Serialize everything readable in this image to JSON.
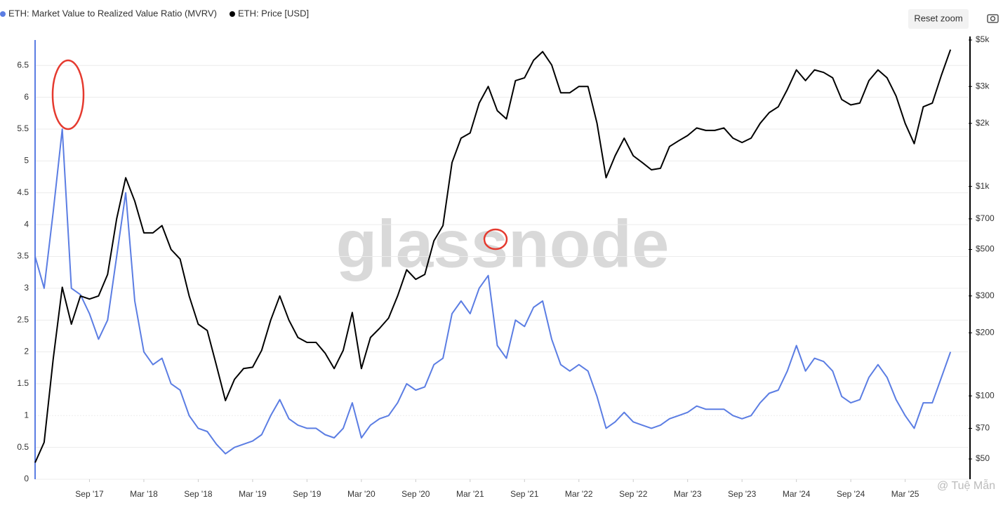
{
  "chart_data": {
    "type": "line",
    "legend_position": "top-left",
    "watermark": "glassnode",
    "button": "Reset zoom",
    "credit": "@ Tuệ Mẫn",
    "grid": true,
    "y2log": true,
    "x": [
      "2017-03",
      "2017-04",
      "2017-05",
      "2017-06",
      "2017-07",
      "2017-08",
      "2017-09",
      "2017-10",
      "2017-11",
      "2017-12",
      "2018-01",
      "2018-02",
      "2018-03",
      "2018-04",
      "2018-05",
      "2018-06",
      "2018-07",
      "2018-08",
      "2018-09",
      "2018-10",
      "2018-11",
      "2018-12",
      "2019-01",
      "2019-02",
      "2019-03",
      "2019-04",
      "2019-05",
      "2019-06",
      "2019-07",
      "2019-08",
      "2019-09",
      "2019-10",
      "2019-11",
      "2019-12",
      "2020-01",
      "2020-02",
      "2020-03",
      "2020-04",
      "2020-05",
      "2020-06",
      "2020-07",
      "2020-08",
      "2020-09",
      "2020-10",
      "2020-11",
      "2020-12",
      "2021-01",
      "2021-02",
      "2021-03",
      "2021-04",
      "2021-05",
      "2021-06",
      "2021-07",
      "2021-08",
      "2021-09",
      "2021-10",
      "2021-11",
      "2021-12",
      "2022-01",
      "2022-02",
      "2022-03",
      "2022-04",
      "2022-05",
      "2022-06",
      "2022-07",
      "2022-08",
      "2022-09",
      "2022-10",
      "2022-11",
      "2022-12",
      "2023-01",
      "2023-02",
      "2023-03",
      "2023-04",
      "2023-05",
      "2023-06",
      "2023-07",
      "2023-08",
      "2023-09",
      "2023-10",
      "2023-11",
      "2023-12",
      "2024-01",
      "2024-02",
      "2024-03",
      "2024-04",
      "2024-05",
      "2024-06",
      "2024-07",
      "2024-08",
      "2024-09",
      "2024-10",
      "2024-11",
      "2024-12",
      "2025-01",
      "2025-02",
      "2025-03",
      "2025-04",
      "2025-05",
      "2025-06",
      "2025-07",
      "2025-08"
    ],
    "xlim": [
      "2017-03",
      "2025-10"
    ],
    "xticks": [
      {
        "value": "2017-09",
        "label": "Sep '17"
      },
      {
        "value": "2018-03",
        "label": "Mar '18"
      },
      {
        "value": "2018-09",
        "label": "Sep '18"
      },
      {
        "value": "2019-03",
        "label": "Mar '19"
      },
      {
        "value": "2019-09",
        "label": "Sep '19"
      },
      {
        "value": "2020-03",
        "label": "Mar '20"
      },
      {
        "value": "2020-09",
        "label": "Sep '20"
      },
      {
        "value": "2021-03",
        "label": "Mar '21"
      },
      {
        "value": "2021-09",
        "label": "Sep '21"
      },
      {
        "value": "2022-03",
        "label": "Mar '22"
      },
      {
        "value": "2022-09",
        "label": "Sep '22"
      },
      {
        "value": "2023-03",
        "label": "Mar '23"
      },
      {
        "value": "2023-09",
        "label": "Sep '23"
      },
      {
        "value": "2024-03",
        "label": "Mar '24"
      },
      {
        "value": "2024-09",
        "label": "Sep '24"
      },
      {
        "value": "2025-03",
        "label": "Mar '25"
      }
    ],
    "ylim": [
      0,
      6.9
    ],
    "yticks": [
      0,
      0.5,
      1,
      1.5,
      2,
      2.5,
      3,
      3.5,
      4,
      4.5,
      5,
      5.5,
      6,
      6.5
    ],
    "y2lim": [
      40,
      5000
    ],
    "y2ticks": [
      {
        "value": 50,
        "label": "$50"
      },
      {
        "value": 70,
        "label": "$70"
      },
      {
        "value": 100,
        "label": "$100"
      },
      {
        "value": 200,
        "label": "$200"
      },
      {
        "value": 300,
        "label": "$300"
      },
      {
        "value": 500,
        "label": "$500"
      },
      {
        "value": 700,
        "label": "$700"
      },
      {
        "value": 1000,
        "label": "$1k"
      },
      {
        "value": 2000,
        "label": "$2k"
      },
      {
        "value": 3000,
        "label": "$3k"
      },
      {
        "value": 5000,
        "label": "$5k"
      }
    ],
    "series": [
      {
        "name": "ETH: Market Value to Realized Value Ratio (MVRV)",
        "color": "#5b7de3",
        "axis": "y",
        "values": [
          3.5,
          3.0,
          4.2,
          5.5,
          3.0,
          2.9,
          2.6,
          2.2,
          2.5,
          3.5,
          4.5,
          2.8,
          2.0,
          1.8,
          1.9,
          1.5,
          1.4,
          1.0,
          0.8,
          0.75,
          0.55,
          0.4,
          0.5,
          0.55,
          0.6,
          0.7,
          1.0,
          1.25,
          0.95,
          0.85,
          0.8,
          0.8,
          0.7,
          0.65,
          0.8,
          1.2,
          0.65,
          0.85,
          0.95,
          1.0,
          1.2,
          1.5,
          1.4,
          1.45,
          1.8,
          1.9,
          2.6,
          2.8,
          2.6,
          3.0,
          3.2,
          2.1,
          1.9,
          2.5,
          2.4,
          2.7,
          2.8,
          2.2,
          1.8,
          1.7,
          1.8,
          1.7,
          1.3,
          0.8,
          0.9,
          1.05,
          0.9,
          0.85,
          0.8,
          0.85,
          0.95,
          1.0,
          1.05,
          1.15,
          1.1,
          1.1,
          1.1,
          1.0,
          0.95,
          1.0,
          1.2,
          1.35,
          1.4,
          1.7,
          2.1,
          1.7,
          1.9,
          1.85,
          1.7,
          1.3,
          1.2,
          1.25,
          1.6,
          1.8,
          1.6,
          1.25,
          1.0,
          0.8,
          1.2,
          1.2,
          1.6,
          2.0
        ]
      },
      {
        "name": "ETH: Price [USD]",
        "color": "#000000",
        "axis": "y2",
        "values": [
          48,
          60,
          150,
          330,
          220,
          300,
          290,
          300,
          380,
          700,
          1100,
          850,
          600,
          600,
          650,
          500,
          450,
          300,
          220,
          205,
          140,
          95,
          120,
          135,
          137,
          165,
          230,
          300,
          230,
          190,
          180,
          180,
          160,
          135,
          165,
          250,
          135,
          190,
          210,
          235,
          300,
          400,
          360,
          380,
          550,
          650,
          1300,
          1700,
          1800,
          2500,
          3000,
          2300,
          2100,
          3200,
          3300,
          4000,
          4400,
          3800,
          2800,
          2800,
          3000,
          3000,
          2000,
          1100,
          1400,
          1700,
          1400,
          1300,
          1200,
          1220,
          1550,
          1650,
          1750,
          1900,
          1850,
          1850,
          1900,
          1700,
          1620,
          1700,
          2000,
          2250,
          2400,
          2900,
          3600,
          3200,
          3600,
          3500,
          3300,
          2600,
          2450,
          2500,
          3200,
          3600,
          3300,
          2700,
          2000,
          1600,
          2400,
          2500,
          3400,
          4500
        ]
      }
    ]
  }
}
